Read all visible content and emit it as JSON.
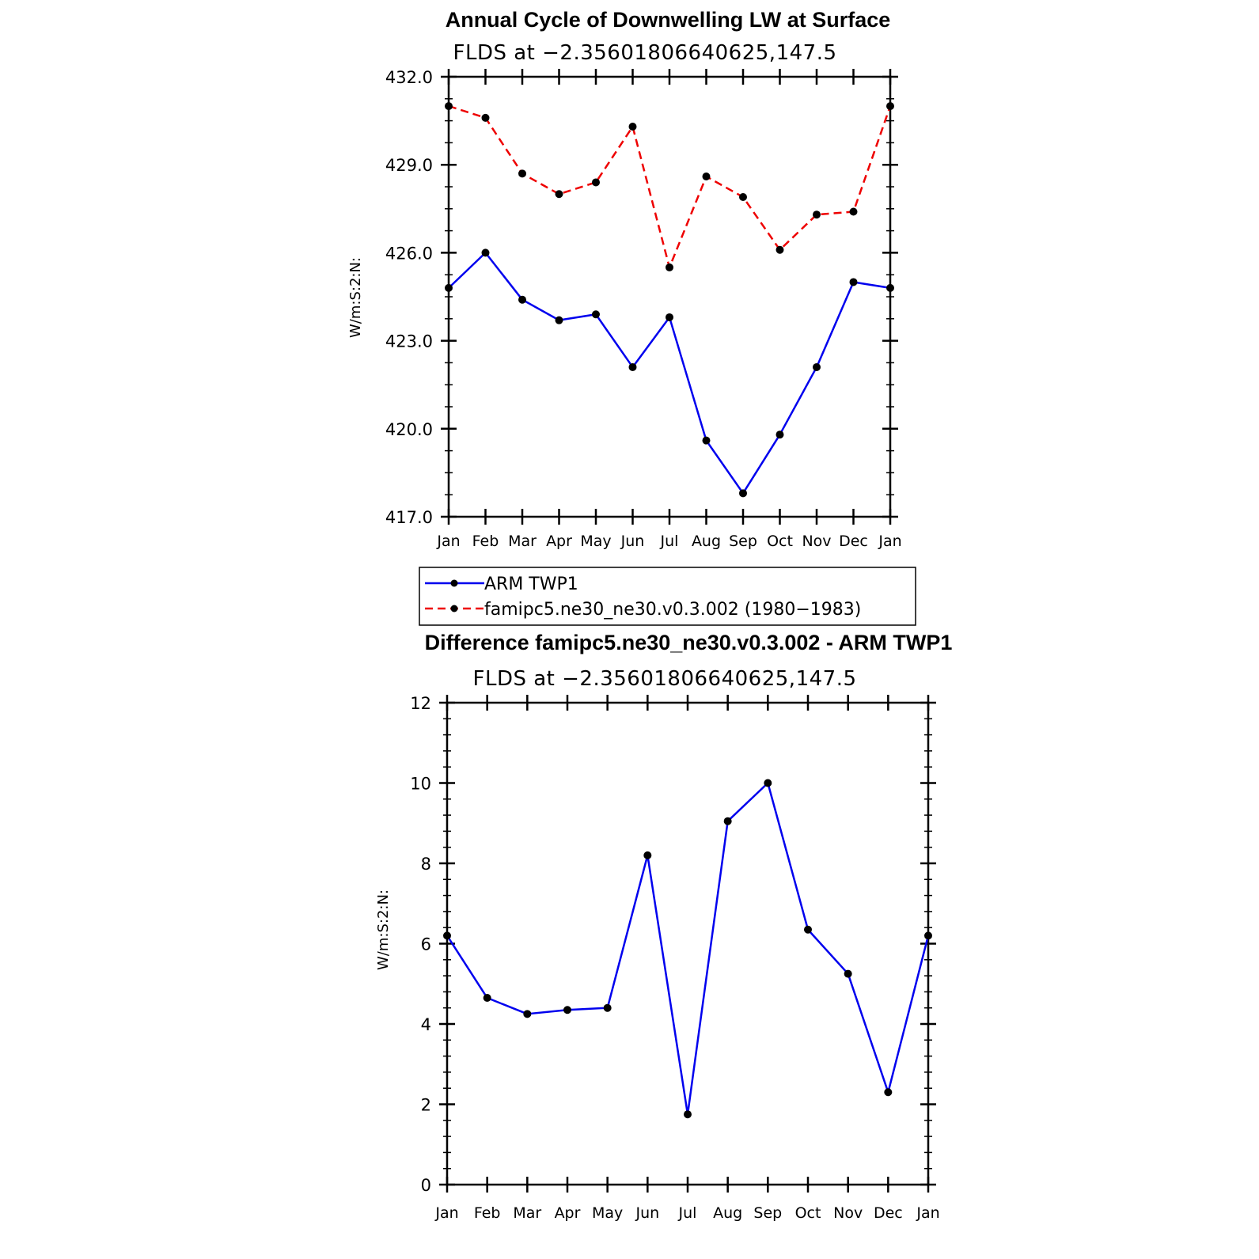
{
  "chart_data": [
    {
      "type": "line",
      "title": "Annual Cycle of Downwelling LW at Surface",
      "subtitle": "FLDS at −2.35601806640625,147.5",
      "ylabel": "W/m:S:2:N:",
      "xlabel": "",
      "categories": [
        "Jan",
        "Feb",
        "Mar",
        "Apr",
        "May",
        "Jun",
        "Jul",
        "Aug",
        "Sep",
        "Oct",
        "Nov",
        "Dec",
        "Jan"
      ],
      "ylim": [
        417.0,
        432.0
      ],
      "yticks": [
        "417.0",
        "420.0",
        "423.0",
        "426.0",
        "429.0",
        "432.0"
      ],
      "series": [
        {
          "name": "ARM TWP1",
          "color": "#0000ee",
          "dash": "solid",
          "values": [
            424.8,
            426.0,
            424.4,
            423.7,
            423.9,
            422.1,
            423.8,
            419.6,
            417.8,
            419.8,
            422.1,
            425.0,
            424.8
          ]
        },
        {
          "name": "famipc5.ne30_ne30.v0.3.002 (1980−1983)",
          "color": "#ee0000",
          "dash": "dashed",
          "values": [
            431.0,
            430.6,
            428.7,
            428.0,
            428.4,
            430.3,
            425.5,
            428.6,
            427.9,
            426.1,
            427.3,
            427.4,
            431.0
          ]
        }
      ]
    },
    {
      "type": "line",
      "title": "Difference famipc5.ne30_ne30.v0.3.002 - ARM TWP1",
      "subtitle": "FLDS at −2.35601806640625,147.5",
      "ylabel": "W/m:S:2:N:",
      "xlabel": "",
      "categories": [
        "Jan",
        "Feb",
        "Mar",
        "Apr",
        "May",
        "Jun",
        "Jul",
        "Aug",
        "Sep",
        "Oct",
        "Nov",
        "Dec",
        "Jan"
      ],
      "ylim": [
        0,
        12
      ],
      "yticks": [
        "0",
        "2",
        "4",
        "6",
        "8",
        "10",
        "12"
      ],
      "series": [
        {
          "name": "Difference",
          "color": "#0000ee",
          "dash": "solid",
          "values": [
            6.2,
            4.65,
            4.25,
            4.35,
            4.4,
            8.2,
            1.75,
            9.05,
            10.0,
            6.35,
            5.25,
            2.3,
            6.2
          ]
        }
      ]
    }
  ]
}
